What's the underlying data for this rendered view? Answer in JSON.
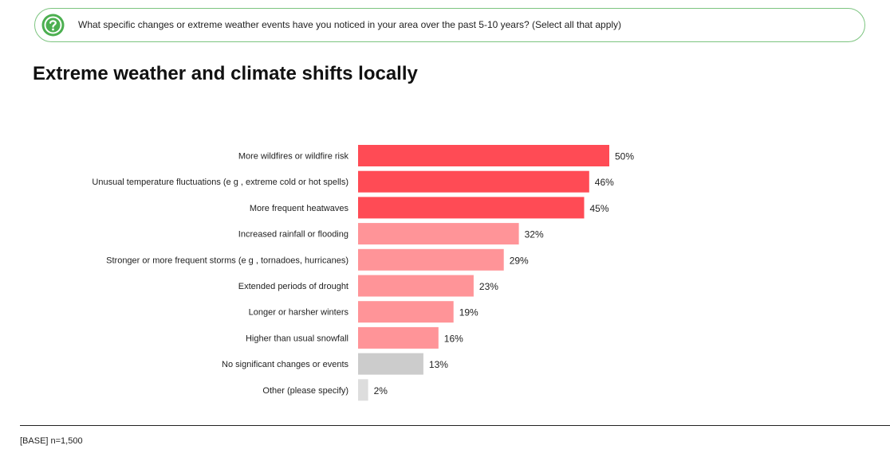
{
  "question": {
    "icon": "question-circle-icon",
    "text": "What specific changes or extreme weather events have you noticed in your area over the past 5-10 years? (Select all that apply)"
  },
  "title": "Extreme weather and climate shifts locally",
  "colors": {
    "accent_green": "#4caf50",
    "bar_dark": "#ff4b55",
    "bar_light": "#ff9498",
    "bar_grey": "#cccccc",
    "bar_lightgrey": "#dddddd"
  },
  "chart_data": {
    "type": "bar",
    "orientation": "horizontal",
    "title": "Extreme weather and climate shifts locally",
    "xlabel": "",
    "ylabel": "",
    "xlim": [
      0,
      100
    ],
    "value_suffix": "%",
    "categories": [
      "More wildfires or wildfire risk",
      "Unusual temperature fluctuations (e g , extreme cold or hot spells)",
      "More frequent heatwaves",
      "Increased rainfall or flooding",
      "Stronger or more frequent storms (e g , tornadoes, hurricanes)",
      "Extended periods of drought",
      "Longer or harsher winters",
      "Higher than usual snowfall",
      "No significant changes or events",
      "Other (please specify)"
    ],
    "values": [
      50,
      46,
      45,
      32,
      29,
      23,
      19,
      16,
      13,
      2
    ],
    "value_labels": [
      "50%",
      "46%",
      "45%",
      "32%",
      "29%",
      "23%",
      "19%",
      "16%",
      "13%",
      "2%"
    ],
    "bar_color_keys": [
      "bar_dark",
      "bar_dark",
      "bar_dark",
      "bar_light",
      "bar_light",
      "bar_light",
      "bar_light",
      "bar_light",
      "bar_grey",
      "bar_lightgrey"
    ]
  },
  "footer": {
    "base": "[BASE] n=1,500"
  }
}
